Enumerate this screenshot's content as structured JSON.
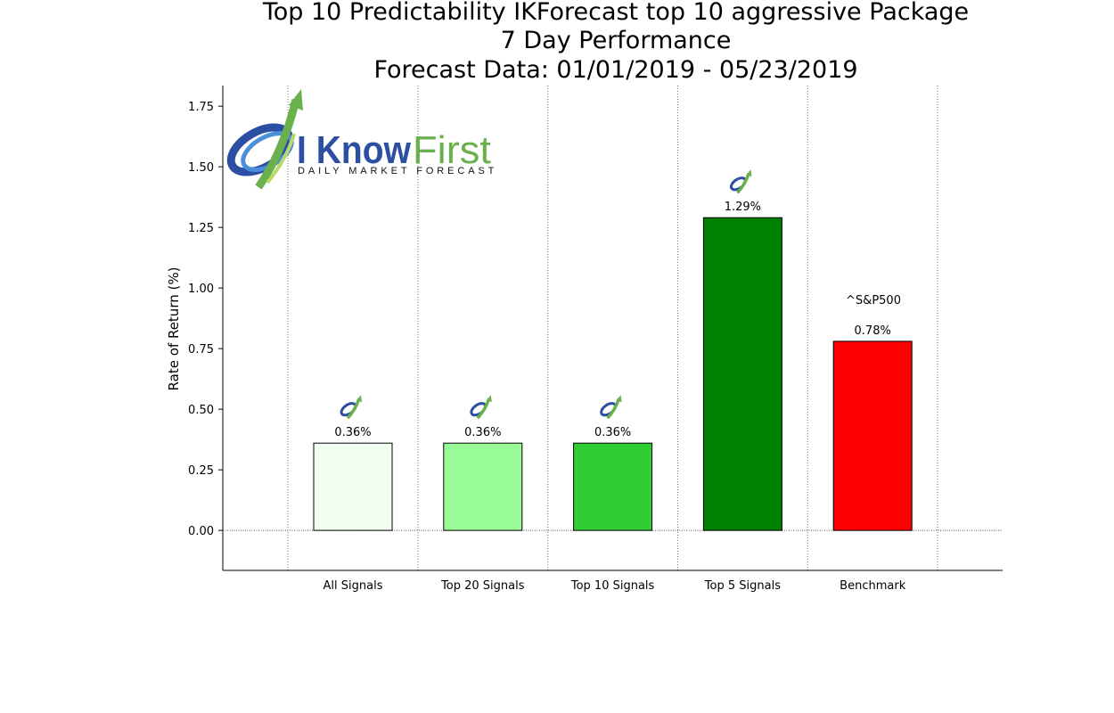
{
  "chart_data": {
    "type": "bar",
    "title_lines": [
      "Top 10 Predictability IKForecast top 10 aggressive Package",
      "7 Day Performance",
      "Forecast Data: 01/01/2019 - 05/23/2019"
    ],
    "ylabel": "Rate of Return (%)",
    "xlabel": "",
    "categories": [
      "All Signals",
      "Top 20 Signals",
      "Top 10 Signals",
      "Top 5 Signals",
      "Benchmark"
    ],
    "values": [
      0.36,
      0.36,
      0.36,
      1.29,
      0.78
    ],
    "value_labels": [
      "0.36%",
      "0.36%",
      "0.36%",
      "1.29%",
      "0.78%"
    ],
    "colors": [
      "#f0fff0",
      "#98fb98",
      "#32cd32",
      "#008000",
      "#ff0000"
    ],
    "ylim": [
      -0.165,
      1.835
    ],
    "yticks": [
      0.0,
      0.25,
      0.5,
      0.75,
      1.0,
      1.25,
      1.5,
      1.75
    ],
    "ytick_labels": [
      "0.00",
      "0.25",
      "0.50",
      "0.75",
      "1.00",
      "1.25",
      "1.50",
      "1.75"
    ],
    "benchmark_annotation": "^S&P500",
    "grid": "vertical dotted",
    "legend": "none"
  },
  "logo": {
    "brand_text": "I KnowFirst",
    "tagline": "Daily Market Forecast",
    "icon": "i-know-first-arrow-logo",
    "colors": {
      "blue": "#2c4fa3",
      "green": "#6ab04c"
    }
  }
}
